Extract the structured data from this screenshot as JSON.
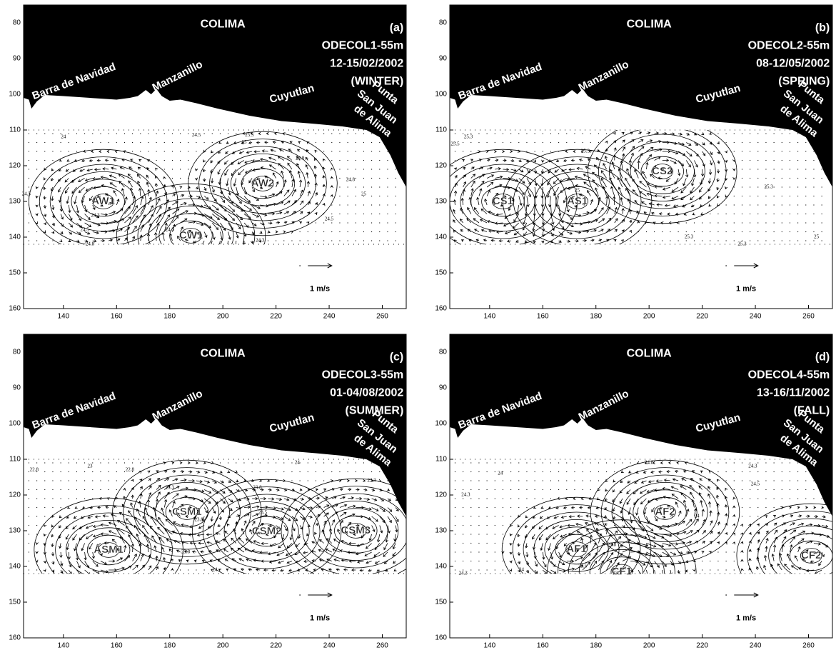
{
  "panels": [
    {
      "letter": "(a)",
      "title": "COLIMA",
      "cruise": "ODECOL1-55m",
      "dates": "12-15/02/2002",
      "season": "(WINTER)",
      "places": [
        "Barra de Navidad",
        "Manzanillo",
        "Cuyutlan",
        "Punta",
        "San Juan",
        "de Alima"
      ],
      "features": [
        "AW1",
        "AW2",
        "CW1"
      ],
      "contour_labels": [
        24,
        24.5,
        25.5,
        25,
        24.8,
        24.8,
        25,
        24.5,
        24.3,
        24.5,
        24.3,
        24.3,
        24.5,
        24.8
      ],
      "scale_label": "1 m/s",
      "xlim": [
        125,
        269
      ],
      "ylim": [
        75,
        160
      ],
      "xticks": [
        140,
        160,
        180,
        200,
        220,
        240,
        260
      ],
      "yticks": [
        80,
        90,
        100,
        110,
        120,
        130,
        140,
        150,
        160
      ]
    },
    {
      "letter": "(b)",
      "title": "COLIMA",
      "cruise": "ODECOL2-55m",
      "dates": "08-12/05/2002",
      "season": "(SPRING)",
      "places": [
        "Barra de Navidad",
        "Manzanillo",
        "Cuyutlan",
        "Punta",
        "San Juan",
        "de Alima"
      ],
      "features": [
        "CS1",
        "AS1",
        "CS2"
      ],
      "contour_labels": [
        25.5,
        25.3,
        25.3,
        25,
        25.3,
        25.3,
        25.3,
        25
      ],
      "scale_label": "1 m/s",
      "xlim": [
        125,
        269
      ],
      "ylim": [
        75,
        160
      ],
      "xticks": [
        140,
        160,
        180,
        200,
        220,
        240,
        260
      ],
      "yticks": [
        80,
        90,
        100,
        110,
        120,
        130,
        140,
        150,
        160
      ]
    },
    {
      "letter": "(c)",
      "title": "COLIMA",
      "cruise": "ODECOL3-55m",
      "dates": "01-04/08/2002",
      "season": "(SUMMER)",
      "places": [
        "Barra de Navidad",
        "Manzanillo",
        "Cuyutlan",
        "Punta",
        "San Juan",
        "de Alima"
      ],
      "features": [
        "CSM1",
        "CSM2",
        "CSM3",
        "ASM1"
      ],
      "contour_labels": [
        22.8,
        23,
        22.8,
        23.3,
        23.8,
        23.5,
        23.8,
        24,
        23.3,
        23.8,
        24
      ],
      "scale_label": "1 m/s",
      "xlim": [
        125,
        269
      ],
      "ylim": [
        75,
        160
      ],
      "xticks": [
        140,
        160,
        180,
        200,
        220,
        240,
        260
      ],
      "yticks": [
        80,
        90,
        100,
        110,
        120,
        130,
        140,
        150,
        160
      ]
    },
    {
      "letter": "(d)",
      "title": "COLIMA",
      "cruise": "ODECOL4-55m",
      "dates": "13-16/11/2002",
      "season": "(FALL)",
      "places": [
        "Barra de Navidad",
        "Manzanillo",
        "Cuyutlan",
        "Punta",
        "San Juan",
        "de Alima"
      ],
      "features": [
        "AF1",
        "AF2",
        "CF1",
        "CF2"
      ],
      "contour_labels": [
        24.8,
        24,
        24.3,
        24.3,
        24.5,
        24,
        23.8,
        23.5,
        23.3,
        24,
        24.3
      ],
      "scale_label": "1 m/s",
      "xlim": [
        125,
        269
      ],
      "ylim": [
        75,
        160
      ],
      "xticks": [
        140,
        160,
        180,
        200,
        220,
        240,
        260
      ],
      "yticks": [
        80,
        90,
        100,
        110,
        120,
        130,
        140,
        150,
        160
      ]
    }
  ]
}
